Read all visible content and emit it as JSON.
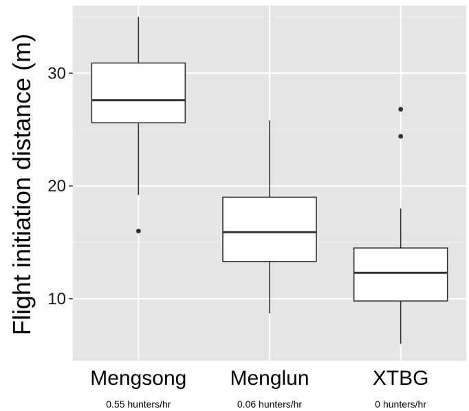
{
  "chart_data": {
    "type": "box",
    "ylabel": "Flight initiation distance (m)",
    "xlabel": "",
    "title": "",
    "ylim": [
      4.5,
      36.0
    ],
    "yticks": [
      10,
      20,
      30
    ],
    "ytick_labels": [
      "10",
      "20",
      "30"
    ],
    "grid": true,
    "categories": [
      "Mengsong",
      "Menglun",
      "XTBG"
    ],
    "category_subtitles": [
      "0.55 hunters/hr",
      "0.06 hunters/hr",
      "0 hunters/hr"
    ],
    "boxes": [
      {
        "category": "Mengsong",
        "whisker_low": 19.2,
        "q1": 25.6,
        "median": 27.6,
        "q3": 30.9,
        "whisker_high": 35.0,
        "outliers": [
          16.0
        ]
      },
      {
        "category": "Menglun",
        "whisker_low": 8.7,
        "q1": 13.3,
        "median": 15.9,
        "q3": 19.0,
        "whisker_high": 25.8,
        "outliers": []
      },
      {
        "category": "XTBG",
        "whisker_low": 6.0,
        "q1": 9.8,
        "median": 12.3,
        "q3": 14.5,
        "whisker_high": 18.0,
        "outliers": [
          24.4,
          26.8
        ]
      }
    ],
    "colors": {
      "panel": "#e5e5e5",
      "grid_major": "#ffffff",
      "grid_minor": "#f2f2f2",
      "box_fill": "#ffffff",
      "box_line": "#333333",
      "median_line": "#333333",
      "outlier": "#333333"
    }
  }
}
